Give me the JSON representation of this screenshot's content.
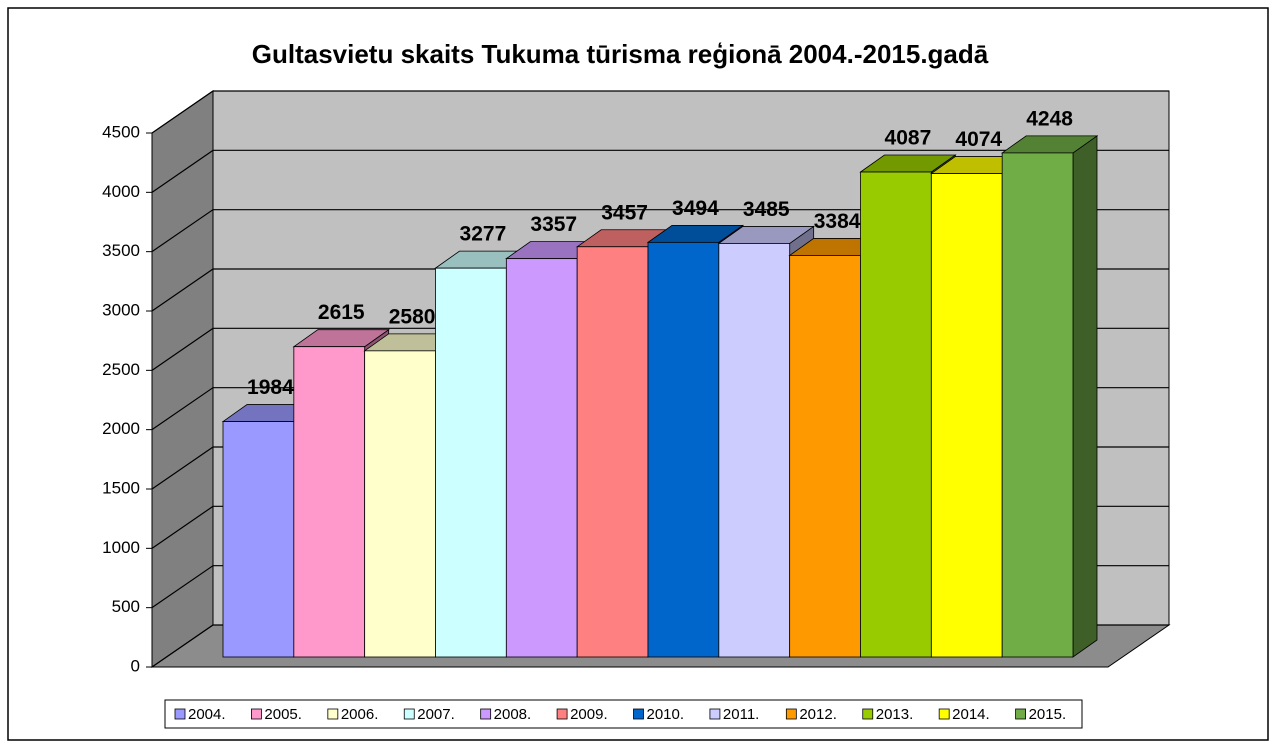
{
  "chart_data": {
    "type": "bar3d",
    "title": "Gultasvietu skaits Tukuma tūrisma reģionā 2004.-2015.gadā",
    "categories": [
      "2004.",
      "2005.",
      "2006.",
      "2007.",
      "2008.",
      "2009.",
      "2010.",
      "2011.",
      "2012.",
      "2013.",
      "2014.",
      "2015."
    ],
    "values": [
      1984,
      2615,
      2580,
      3277,
      3357,
      3457,
      3494,
      3485,
      3384,
      4087,
      4074,
      4248
    ],
    "colors": [
      "#9999ff",
      "#ff99cc",
      "#ffffcc",
      "#ccffff",
      "#cc99ff",
      "#ff8080",
      "#0066cc",
      "#ccccff",
      "#ff9900",
      "#99cc00",
      "#ffff00",
      "#70ad47"
    ],
    "ylim": [
      0,
      4500
    ],
    "yticks": [
      0,
      500,
      1000,
      1500,
      2000,
      2500,
      3000,
      3500,
      4000,
      4500
    ],
    "grid": true,
    "legend": "bottom"
  }
}
